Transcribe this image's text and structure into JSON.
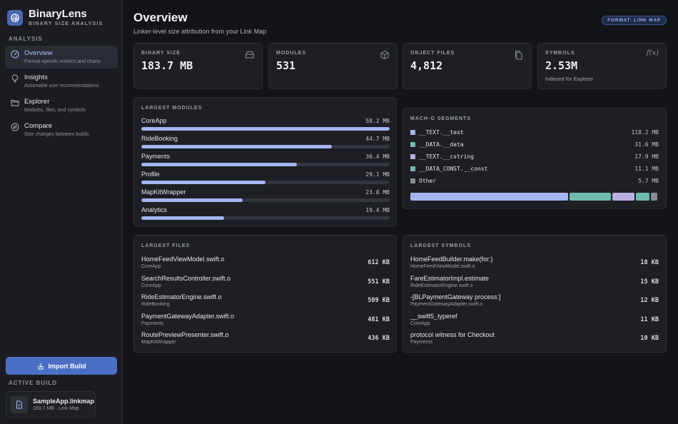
{
  "app": {
    "name": "BinaryLens",
    "subtitle": "BINARY SIZE ANALYSIS"
  },
  "sidebar": {
    "section_label": "ANALYSIS",
    "items": [
      {
        "title": "Overview",
        "subtitle": "Format-specific metrics and charts",
        "icon": "gauge-icon",
        "active": true
      },
      {
        "title": "Insights",
        "subtitle": "Actionable size recommendations",
        "icon": "lightbulb-icon",
        "active": false
      },
      {
        "title": "Explorer",
        "subtitle": "Modules, files, and symbols",
        "icon": "folder-icon",
        "active": false
      },
      {
        "title": "Compare",
        "subtitle": "Size changes between builds",
        "icon": "compare-icon",
        "active": false
      }
    ],
    "import_label": "Import Build",
    "active_build_label": "ACTIVE BUILD",
    "active_build": {
      "name": "SampleApp.linkmap",
      "meta": "183.7 MB · Link Map"
    }
  },
  "header": {
    "title": "Overview",
    "subtitle": "Linker-level size attribution from your Link Map",
    "format_badge": "FORMAT: LINK MAP"
  },
  "stats": [
    {
      "label": "BINARY SIZE",
      "value": "183.7 MB",
      "note": "",
      "icon": "drive-icon"
    },
    {
      "label": "MODULES",
      "value": "531",
      "note": "",
      "icon": "cube-icon"
    },
    {
      "label": "OBJECT FILES",
      "value": "4,812",
      "note": "",
      "icon": "files-icon"
    },
    {
      "label": "SYMBOLS",
      "value": "2.53M",
      "note": "Indexed for Explorer",
      "icon": "function-icon"
    }
  ],
  "largest_modules": {
    "title": "LARGEST MODULES",
    "max": 58.2,
    "items": [
      {
        "name": "CoreApp",
        "size_label": "58.2 MB",
        "value": 58.2
      },
      {
        "name": "RideBooking",
        "size_label": "44.7 MB",
        "value": 44.7
      },
      {
        "name": "Payments",
        "size_label": "36.4 MB",
        "value": 36.4
      },
      {
        "name": "Profile",
        "size_label": "29.1 MB",
        "value": 29.1
      },
      {
        "name": "MapKitWrapper",
        "size_label": "23.8 MB",
        "value": 23.8
      },
      {
        "name": "Analytics",
        "size_label": "19.4 MB",
        "value": 19.4
      }
    ]
  },
  "segments": {
    "title": "MACH-O SEGMENTS",
    "items": [
      {
        "name": "__TEXT.__text",
        "size_label": "118.2 MB",
        "value": 118.2,
        "color": "#a4b5f2"
      },
      {
        "name": "__DATA.__data",
        "size_label": "31.6 MB",
        "value": 31.6,
        "color": "#6fbcae"
      },
      {
        "name": "__TEXT.__cstring",
        "size_label": "17.9 MB",
        "value": 17.9,
        "color": "#b7b0e0"
      },
      {
        "name": "__DATA_CONST.__const",
        "size_label": "11.1 MB",
        "value": 11.1,
        "color": "#6fbcae"
      },
      {
        "name": "Other",
        "size_label": "5.7 MB",
        "value": 5.7,
        "color": "#8a8c94"
      }
    ]
  },
  "largest_files": {
    "title": "LARGEST FILES",
    "items": [
      {
        "name": "HomeFeedViewModel.swift.o",
        "module": "CoreApp",
        "size": "612 KB"
      },
      {
        "name": "SearchResultsController.swift.o",
        "module": "CoreApp",
        "size": "551 KB"
      },
      {
        "name": "RideEstimatorEngine.swift.o",
        "module": "RideBooking",
        "size": "509 KB"
      },
      {
        "name": "PaymentGatewayAdapter.swift.o",
        "module": "Payments",
        "size": "481 KB"
      },
      {
        "name": "RoutePreviewPresenter.swift.o",
        "module": "MapKitWrapper",
        "size": "436 KB"
      }
    ]
  },
  "largest_symbols": {
    "title": "LARGEST SYMBOLS",
    "items": [
      {
        "name": "HomeFeedBuilder.make(for:)",
        "source": "HomeFeedViewModel.swift.o",
        "size": "18 KB"
      },
      {
        "name": "FareEstimatorImpl.estimate",
        "source": "RideEstimatorEngine.swift.o",
        "size": "15 KB"
      },
      {
        "name": "-[BLPaymentGateway process:]",
        "source": "PaymentGatewayAdapter.swift.o",
        "size": "12 KB"
      },
      {
        "name": "__swift5_typeref",
        "source": "CoreApp",
        "size": "11 KB"
      },
      {
        "name": "protocol witness for Checkout",
        "source": "Payments",
        "size": "10 KB"
      }
    ]
  }
}
